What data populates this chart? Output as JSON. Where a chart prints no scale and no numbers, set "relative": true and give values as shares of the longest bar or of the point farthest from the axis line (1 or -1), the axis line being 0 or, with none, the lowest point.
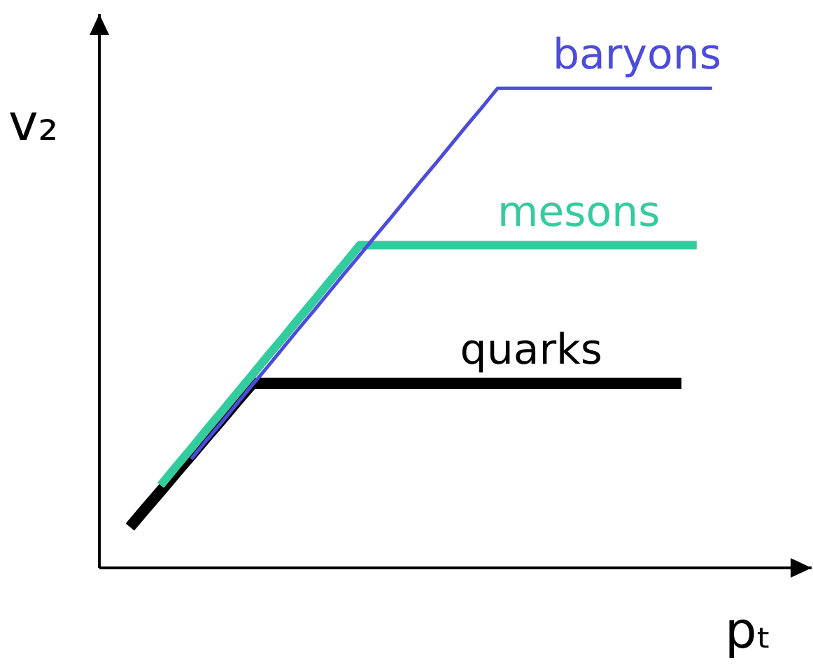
{
  "chart_data": {
    "type": "line",
    "relative": true,
    "xlabel": "pₜ",
    "ylabel": "v₂",
    "categories": [
      null,
      null,
      null,
      null,
      null,
      null,
      null,
      null,
      null,
      null,
      null,
      null,
      null,
      null,
      null,
      null,
      null,
      null,
      null,
      null,
      null,
      null,
      null,
      null,
      null,
      null,
      null,
      null,
      null,
      null,
      null,
      null,
      null,
      null,
      null,
      null,
      null,
      null,
      null,
      null,
      null,
      null,
      null,
      null,
      null
    ],
    "series": [
      {
        "name": "quarks",
        "color": "#000000",
        "values": [
          null,
          0.085,
          0.123,
          0.16,
          0.198,
          0.235,
          0.273,
          0.31,
          0.348,
          0.385,
          0.385,
          0.385,
          0.385,
          0.385,
          0.385,
          0.385,
          0.385,
          0.385,
          0.385,
          0.385,
          0.385,
          0.385,
          0.385,
          0.385,
          0.385,
          0.385,
          0.385,
          0.385,
          0.385,
          0.385,
          0.385,
          0.385,
          0.385,
          0.385,
          0.385,
          0.385,
          0.385,
          0.385,
          null,
          null,
          null,
          null,
          null,
          null,
          null
        ]
      },
      {
        "name": "mesons",
        "color": "#33cc9f",
        "values": [
          null,
          null,
          null,
          0.172,
          0.211,
          0.249,
          0.288,
          0.326,
          0.365,
          0.403,
          0.442,
          0.48,
          0.519,
          0.557,
          0.596,
          0.634,
          0.673,
          0.673,
          0.673,
          0.673,
          0.673,
          0.673,
          0.673,
          0.673,
          0.673,
          0.673,
          0.673,
          0.673,
          0.673,
          0.673,
          0.673,
          0.673,
          0.673,
          0.673,
          0.673,
          0.673,
          0.673,
          0.673,
          0.673,
          null,
          null,
          null,
          null,
          null,
          null
        ]
      },
      {
        "name": "baryons",
        "color": "#4b4bdc",
        "values": [
          null,
          null,
          null,
          null,
          null,
          0.227,
          0.266,
          0.304,
          0.343,
          0.382,
          0.42,
          0.459,
          0.498,
          0.536,
          0.575,
          0.614,
          0.652,
          0.691,
          0.729,
          0.768,
          0.807,
          0.845,
          0.884,
          0.923,
          0.961,
          1,
          1,
          1,
          1,
          1,
          1,
          1,
          1,
          1,
          1,
          1,
          1,
          1,
          1,
          1,
          null,
          null,
          null,
          null,
          null
        ]
      }
    ]
  }
}
